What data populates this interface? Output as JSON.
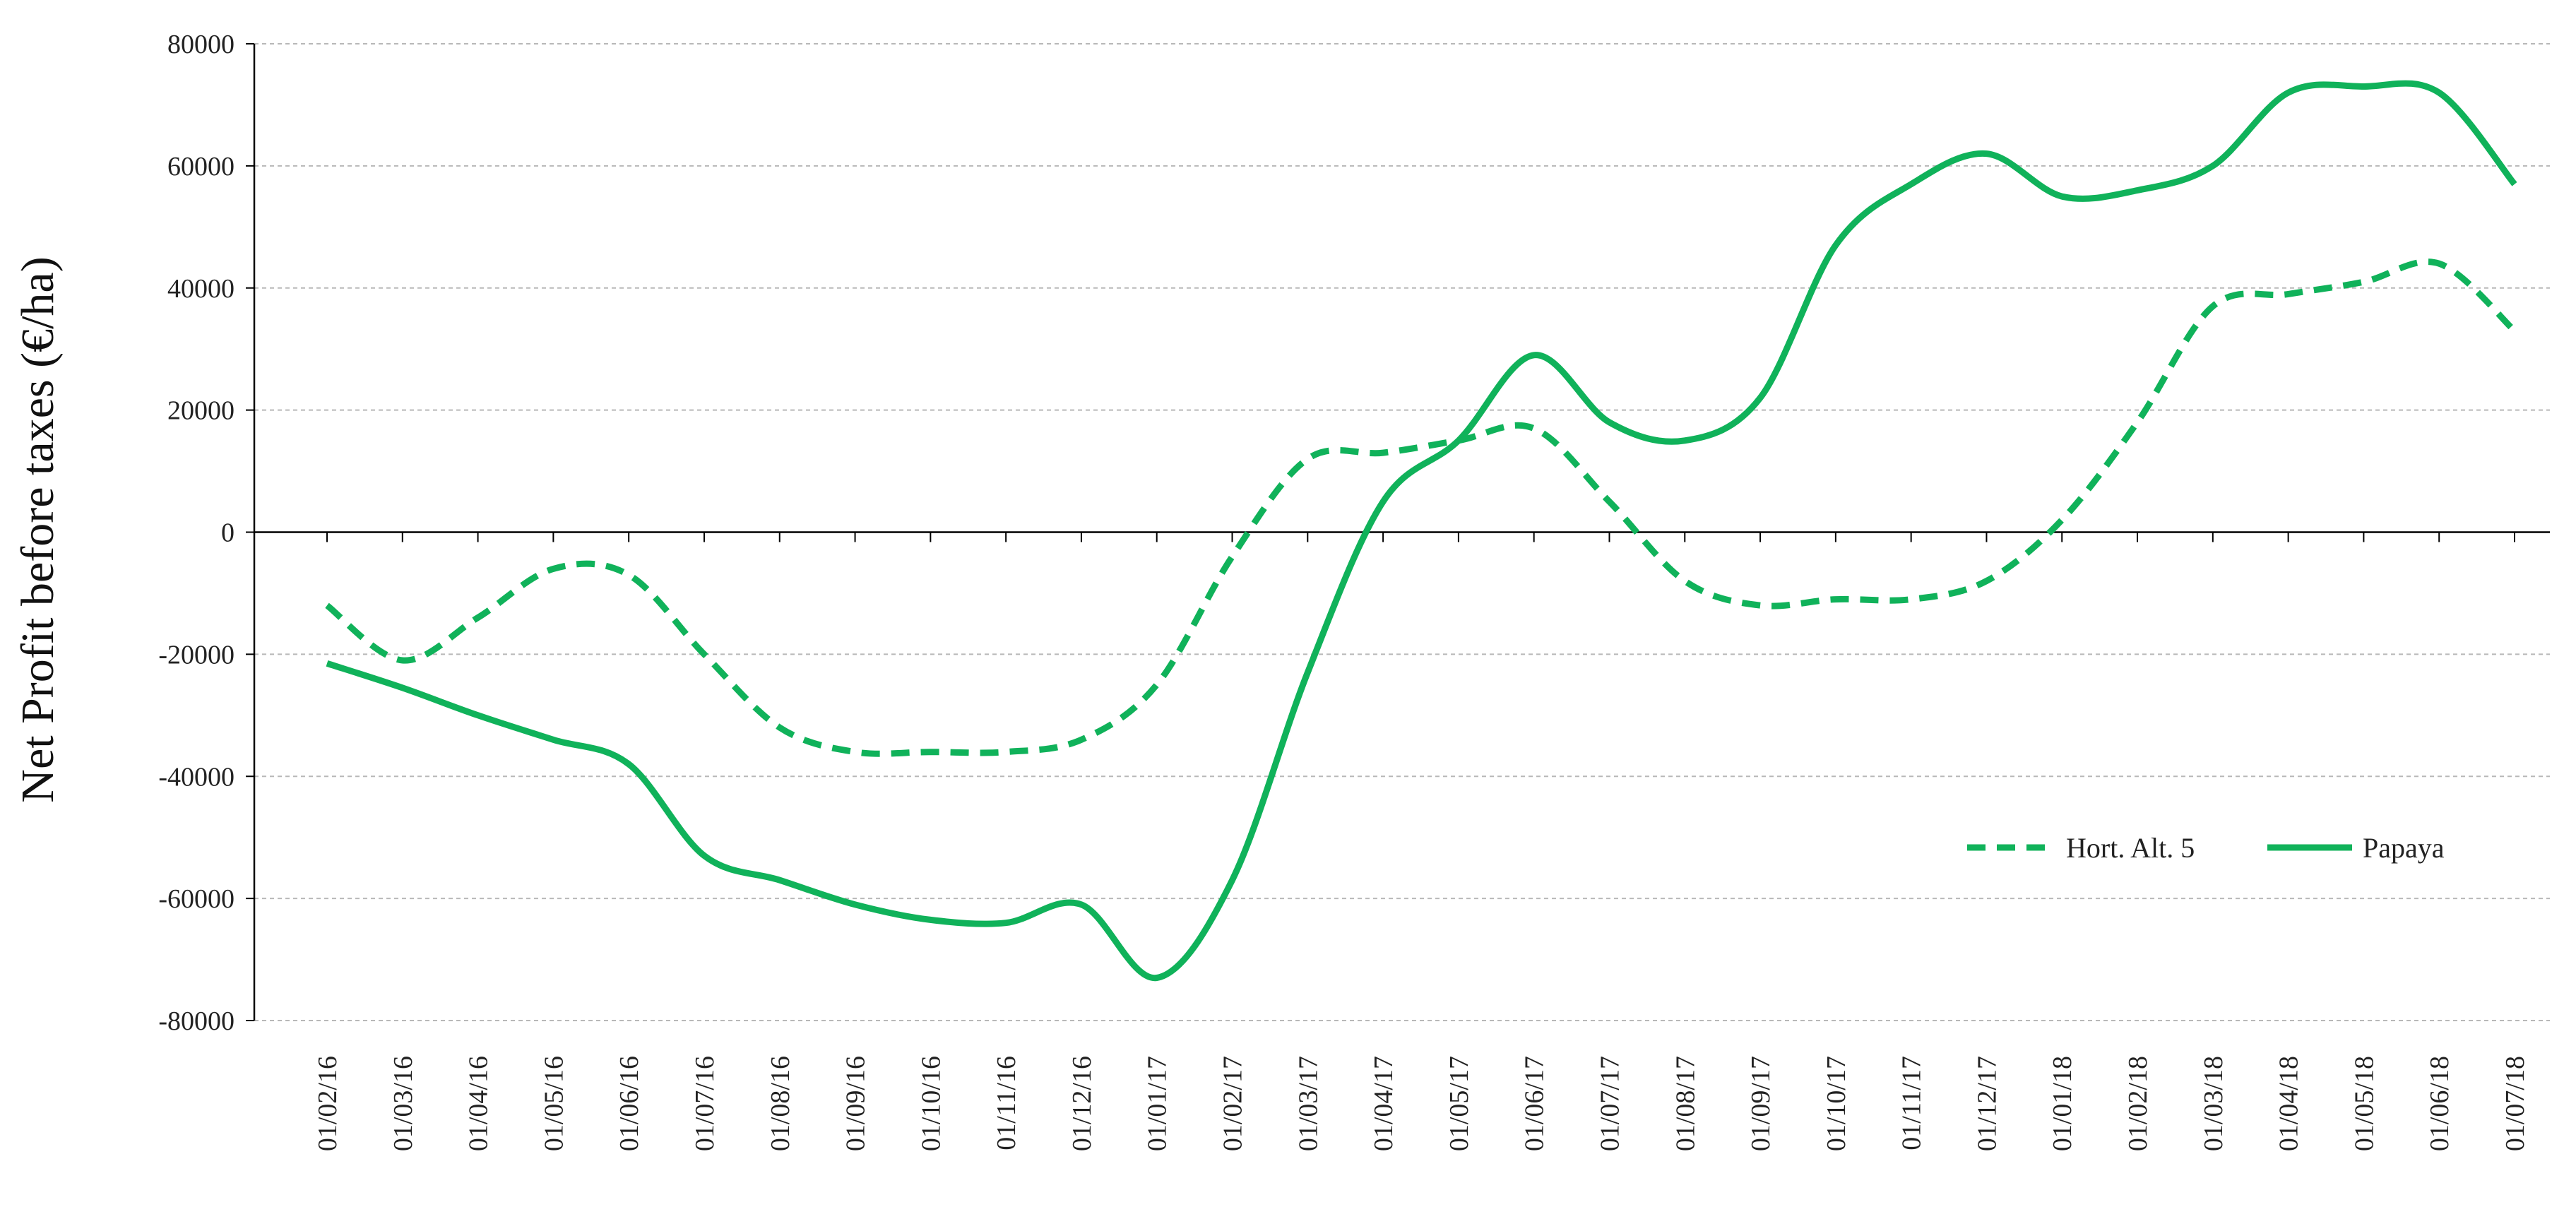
{
  "chart_data": {
    "type": "line",
    "title": "",
    "xlabel": "",
    "ylabel": "Net Profit before taxes (€/ha)",
    "ylim": [
      -80000,
      80000
    ],
    "yticks": [
      80000,
      60000,
      40000,
      20000,
      0,
      -20000,
      -40000,
      -60000,
      -80000
    ],
    "grid": true,
    "legend_position": "right",
    "categories": [
      "01/02/16",
      "01/03/16",
      "01/04/16",
      "01/05/16",
      "01/06/16",
      "01/07/16",
      "01/08/16",
      "01/09/16",
      "01/10/16",
      "01/11/16",
      "01/12/16",
      "01/01/17",
      "01/02/17",
      "01/03/17",
      "01/04/17",
      "01/05/17",
      "01/06/17",
      "01/07/17",
      "01/08/17",
      "01/09/17",
      "01/10/17",
      "01/11/17",
      "01/12/17",
      "01/01/18",
      "01/02/18",
      "01/03/18",
      "01/04/18",
      "01/05/18",
      "01/06/18",
      "01/07/18"
    ],
    "series": [
      {
        "name": "Hort. Alt. 5",
        "style": "dashed",
        "color": "#10b25a",
        "values": [
          -12000,
          -21000,
          -14000,
          -6000,
          -7000,
          -20000,
          -32000,
          -36000,
          -36000,
          -36000,
          -34000,
          -25000,
          -4000,
          12000,
          13000,
          15000,
          17000,
          5000,
          -8000,
          -12000,
          -11000,
          -11000,
          -8000,
          2000,
          18000,
          37000,
          39000,
          41000,
          44000,
          33000
        ]
      },
      {
        "name": "Papaya",
        "style": "solid",
        "color": "#10b25a",
        "values": [
          -21500,
          -25500,
          -30000,
          -34000,
          -38000,
          -53000,
          -57000,
          -61000,
          -63500,
          -64000,
          -61000,
          -73000,
          -57000,
          -23000,
          5000,
          15000,
          29000,
          18000,
          15000,
          22000,
          47000,
          57000,
          62000,
          55000,
          56000,
          60000,
          72000,
          73000,
          72000,
          57000
        ]
      }
    ]
  }
}
